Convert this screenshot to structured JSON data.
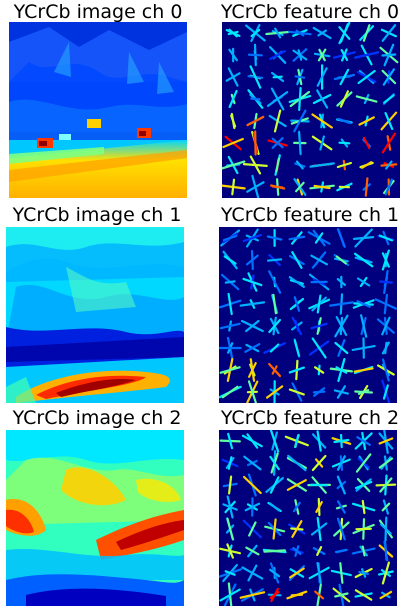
{
  "panels": [
    {
      "title": "YCrCb image ch 0"
    },
    {
      "title": "YCrCb feature ch 0"
    },
    {
      "title": "YCrCb image ch 1"
    },
    {
      "title": "YCrCb feature ch 1"
    },
    {
      "title": "YCrCb image ch 2"
    },
    {
      "title": "YCrCb feature ch 2"
    }
  ],
  "colors": {
    "jet_dark_blue": "#00007f",
    "jet_blue": "#0000ff",
    "jet_cyan": "#00ffff",
    "jet_yellow": "#ffff00",
    "jet_red": "#ff0000",
    "jet_dark_red": "#7f0000"
  }
}
